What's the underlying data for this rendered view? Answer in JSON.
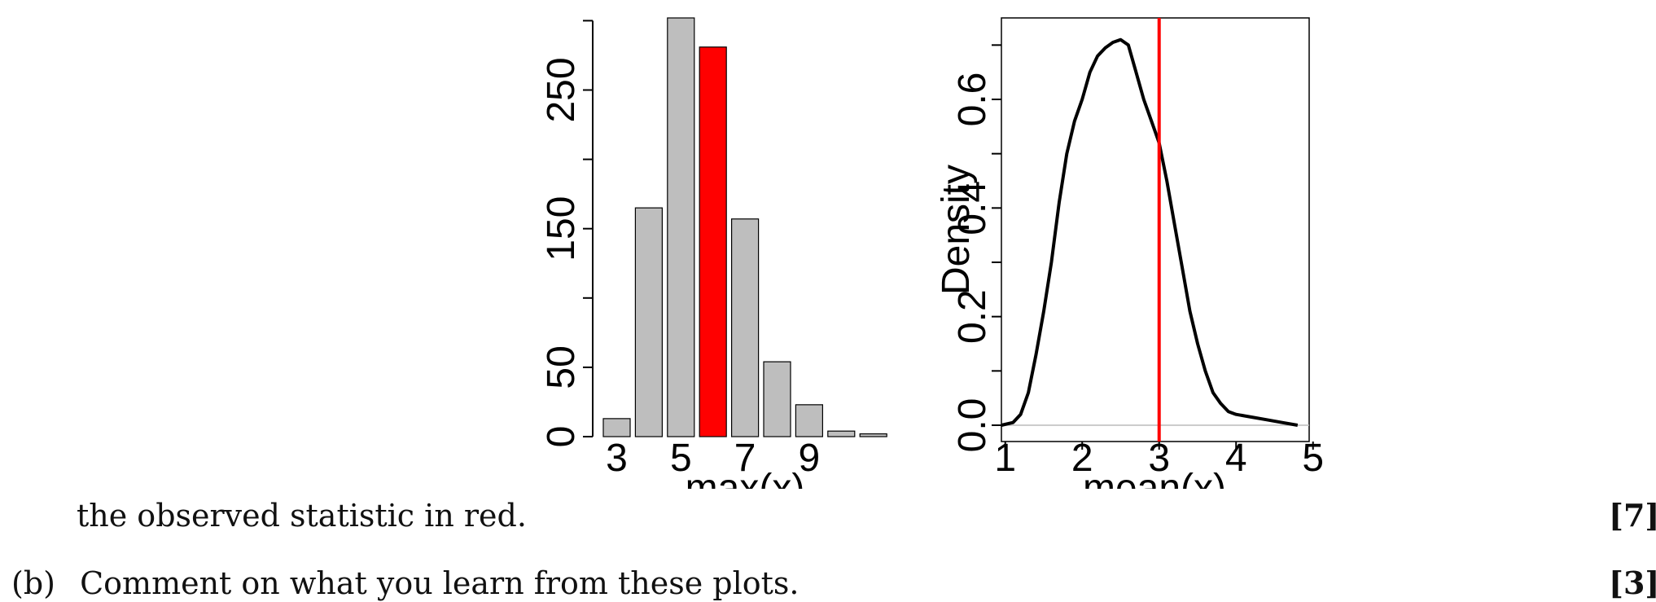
{
  "chart_data": [
    {
      "type": "bar",
      "xlabel": "max(x)",
      "ylabel": "",
      "categories": [
        "3",
        "4",
        "5",
        "6",
        "7",
        "8",
        "9",
        "10",
        "11"
      ],
      "values": [
        13,
        165,
        302,
        281,
        157,
        54,
        23,
        4,
        2
      ],
      "bar_colors": [
        "#bebebe",
        "#bebebe",
        "#bebebe",
        "#ff0000",
        "#bebebe",
        "#bebebe",
        "#bebebe",
        "#bebebe",
        "#bebebe"
      ],
      "observed_category": "6",
      "x_tick_labels": [
        "3",
        "5",
        "7",
        "9"
      ],
      "y_tick_labels": [
        "0",
        "50",
        "150",
        "250"
      ],
      "ylim": [
        0,
        302
      ]
    },
    {
      "type": "line",
      "xlabel": "mean(x)",
      "ylabel": "Density",
      "x": [
        0.95,
        1.1,
        1.2,
        1.3,
        1.4,
        1.5,
        1.6,
        1.7,
        1.8,
        1.9,
        2.0,
        2.1,
        2.2,
        2.3,
        2.4,
        2.5,
        2.6,
        2.7,
        2.8,
        2.9,
        3.0,
        3.1,
        3.2,
        3.3,
        3.4,
        3.5,
        3.6,
        3.7,
        3.8,
        3.9,
        4.0,
        4.2,
        4.4,
        4.6,
        4.8
      ],
      "y": [
        0.0,
        0.005,
        0.02,
        0.06,
        0.13,
        0.21,
        0.3,
        0.41,
        0.5,
        0.56,
        0.6,
        0.65,
        0.68,
        0.695,
        0.705,
        0.71,
        0.7,
        0.65,
        0.6,
        0.56,
        0.52,
        0.45,
        0.37,
        0.29,
        0.21,
        0.15,
        0.1,
        0.06,
        0.04,
        0.025,
        0.02,
        0.015,
        0.01,
        0.005,
        0.0
      ],
      "observed_value": 3.0,
      "xlim": [
        0.95,
        4.95
      ],
      "ylim": [
        -0.03,
        0.75
      ],
      "x_tick_labels": [
        "1",
        "2",
        "3",
        "4",
        "5"
      ],
      "y_tick_labels": [
        "0.0",
        "0.2",
        "0.4",
        "0.6"
      ]
    }
  ],
  "text": {
    "caption_line": "the observed statistic in red.",
    "caption_marks": "[7]",
    "part_b_label": "(b)",
    "part_b_text": "Comment on what you learn from these plots.",
    "part_b_marks": "[3]"
  }
}
